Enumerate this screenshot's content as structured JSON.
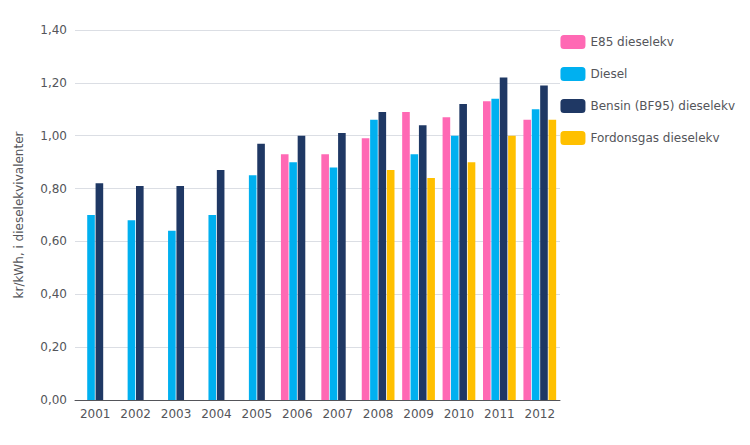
{
  "chart_data": {
    "type": "bar",
    "categories": [
      "2001",
      "2002",
      "2003",
      "2004",
      "2005",
      "2006",
      "2007",
      "2008",
      "2009",
      "2010",
      "2011",
      "2012"
    ],
    "series": [
      {
        "name": "E85 dieselekv",
        "color": "#FF69B4",
        "values": [
          null,
          null,
          null,
          null,
          null,
          0.93,
          0.93,
          0.99,
          1.09,
          1.07,
          1.13,
          1.06
        ]
      },
      {
        "name": "Diesel",
        "color": "#00B0F0",
        "values": [
          0.7,
          0.68,
          0.64,
          0.7,
          0.85,
          0.9,
          0.88,
          1.06,
          0.93,
          1.0,
          1.14,
          1.1
        ]
      },
      {
        "name": "Bensin (BF95) dieselekv",
        "color": "#1F3864",
        "values": [
          0.82,
          0.81,
          0.81,
          0.87,
          0.97,
          1.0,
          1.01,
          1.09,
          1.04,
          1.12,
          1.22,
          1.19
        ]
      },
      {
        "name": "Fordonsgas dieselekv",
        "color": "#FFC000",
        "values": [
          null,
          null,
          null,
          null,
          null,
          null,
          null,
          0.87,
          0.84,
          0.9,
          1.0,
          1.06
        ]
      }
    ],
    "ylabel": "kr/kWh, i dieselekvivalenter",
    "ylim": [
      0,
      1.4
    ],
    "yticks": [
      {
        "value": 0.0,
        "label": "0,00"
      },
      {
        "value": 0.2,
        "label": "0,20"
      },
      {
        "value": 0.4,
        "label": "0,40"
      },
      {
        "value": 0.6,
        "label": "0,60"
      },
      {
        "value": 0.8,
        "label": "0,80"
      },
      {
        "value": 1.0,
        "label": "1,00"
      },
      {
        "value": 1.2,
        "label": "1,20"
      },
      {
        "value": 1.4,
        "label": "1,40"
      }
    ],
    "grid": true,
    "legend": "right"
  }
}
